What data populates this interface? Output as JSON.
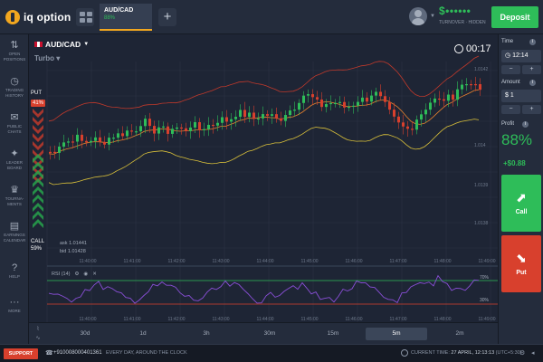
{
  "header": {
    "logo_text": "iq option",
    "active_tab": {
      "asset": "AUD/CAD",
      "profit": "88%"
    },
    "balance": {
      "amount": "$••••••",
      "caption": "TURNOVER · HIDDEN"
    },
    "deposit_label": "Deposit"
  },
  "sidebar": {
    "items": [
      {
        "icon": "⇅",
        "icon_name": "arrows-icon",
        "label": "OPEN POSITIONS"
      },
      {
        "icon": "◷",
        "icon_name": "history-icon",
        "label": "TRADING HISTORY"
      },
      {
        "icon": "✉",
        "icon_name": "chat-icon",
        "label": "PUBLIC CHATS"
      },
      {
        "icon": "✦",
        "icon_name": "leaders-icon",
        "label": "LEADER BOARD"
      },
      {
        "icon": "♛",
        "icon_name": "trophy-icon",
        "label": "TOURNA-MENTS"
      },
      {
        "icon": "▤",
        "icon_name": "calendar-icon",
        "label": "EARNINGS CALENDAR"
      },
      {
        "icon": "?",
        "icon_name": "help-icon",
        "label": "HELP"
      },
      {
        "icon": "···",
        "icon_name": "more-icon",
        "label": "MORE"
      }
    ]
  },
  "chart": {
    "asset_name": "AUD/CAD",
    "mode": "Turbo ▾",
    "countdown": "00:17",
    "put_label": "PUT",
    "put_percent": "41%",
    "call_label": "CALL",
    "call_percent": "59%",
    "ask": "ask 1.01441",
    "bid": "bid 1.01428",
    "indicator_label": "RSI (14)",
    "rsi_levels": [
      "70%",
      "30%"
    ],
    "price_ticks": [
      "1.0142",
      "1.014",
      "1.0139",
      "1.0138"
    ],
    "time_ticks": [
      "11:40:00",
      "11:41:00",
      "11:42:00",
      "11:43:00",
      "11:44:00",
      "11:45:00",
      "11:46:00",
      "11:47:00",
      "11:48:00",
      "11:49:00"
    ],
    "rsi_time_ticks": [
      "11:40:00",
      "11:41:00",
      "11:42:00",
      "11:43:00",
      "11:44:00",
      "11:45:00",
      "11:46:00",
      "11:47:00",
      "11:48:00",
      "11:49:00"
    ],
    "colors": {
      "bull": "#2ebd59",
      "bear": "#d8402d",
      "band": "#c0392b",
      "yellow": "#d9c03a",
      "orange": "#e8822e",
      "rsi": "#8a4fd8"
    }
  },
  "timeframes": {
    "items": [
      "30d",
      "1d",
      "3h",
      "30m",
      "15m",
      "5m",
      "2m"
    ],
    "active": "5m"
  },
  "trade_panel": {
    "time_label": "Time",
    "time_value": "12:14",
    "amount_label": "Amount",
    "amount_value": "$ 1",
    "profit_label": "Profit",
    "profit_percent": "88%",
    "profit_amount": "+$0.88",
    "call_label": "Call",
    "put_label": "Put",
    "minus": "−",
    "plus": "+"
  },
  "footer": {
    "support_label": "SUPPORT",
    "phone": "+910008000401361",
    "hours": "EVERY DAY, AROUND THE CLOCK",
    "current_time_label": "CURRENT TIME:",
    "current_time": "27 APRIL, 12:13:13",
    "utc": "(UTC+5:30)"
  }
}
